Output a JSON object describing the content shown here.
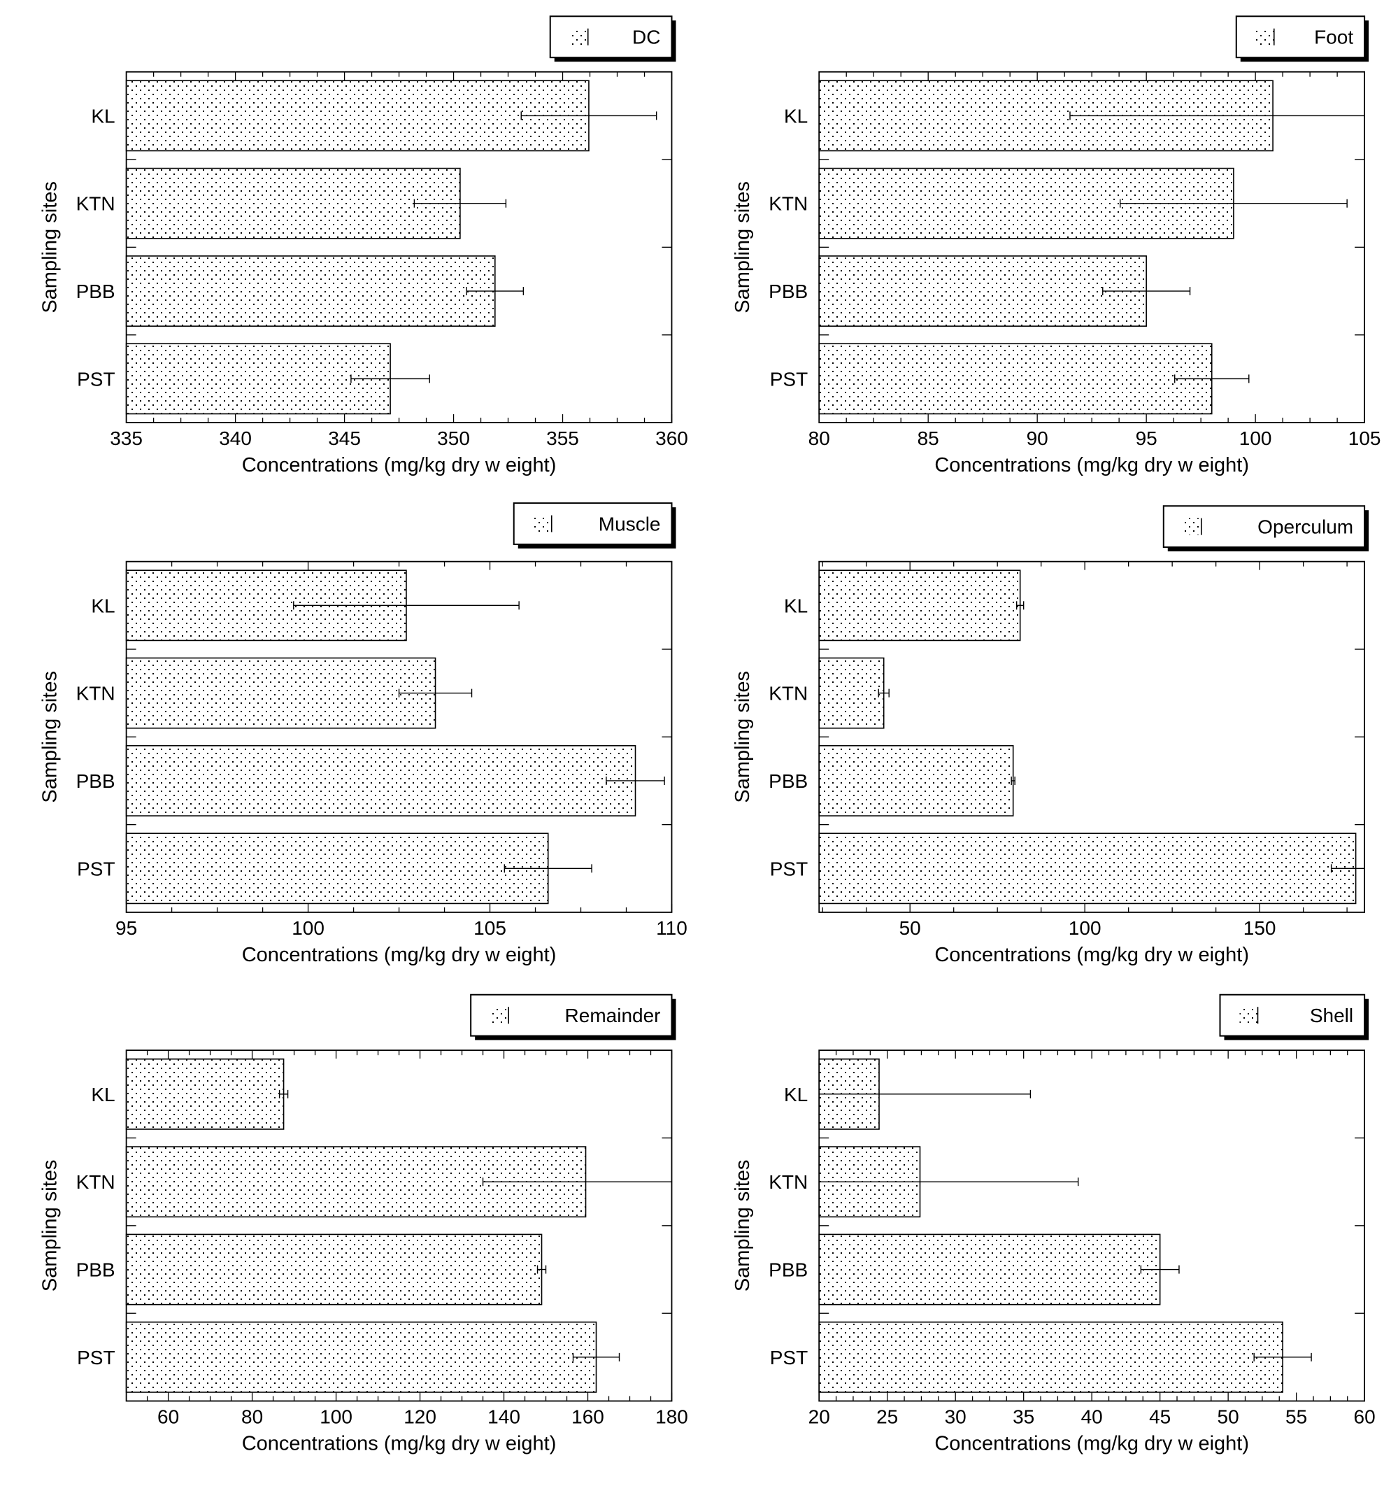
{
  "figure": {
    "panel_count": 6
  },
  "chart_data": [
    {
      "type": "bar",
      "orientation": "horizontal",
      "title": "",
      "legend_label": "DC",
      "legend_position": "top-right",
      "categories": [
        "KL",
        "KTN",
        "PBB",
        "PST"
      ],
      "values": [
        356.2,
        350.3,
        351.9,
        347.1
      ],
      "errors": [
        3.1,
        2.1,
        1.3,
        1.8
      ],
      "xlim": [
        335,
        360
      ],
      "xticks": [
        335,
        340,
        345,
        350,
        355,
        360
      ],
      "xlabel": "Concentrations (mg/kg dry w eight)",
      "ylabel": "Sampling sites",
      "grid": false,
      "fill_pattern": "dotted"
    },
    {
      "type": "bar",
      "orientation": "horizontal",
      "title": "",
      "legend_label": "Foot",
      "legend_position": "top-right",
      "categories": [
        "KL",
        "KTN",
        "PBB",
        "PST"
      ],
      "values": [
        100.8,
        99.0,
        95.0,
        98.0
      ],
      "errors": [
        9.3,
        5.2,
        2.0,
        1.7
      ],
      "xlim": [
        80,
        105
      ],
      "xticks": [
        80,
        85,
        90,
        95,
        100,
        105
      ],
      "xlabel": "Concentrations (mg/kg dry w eight)",
      "ylabel": "Sampling sites",
      "grid": false,
      "fill_pattern": "dotted"
    },
    {
      "type": "bar",
      "orientation": "horizontal",
      "title": "",
      "legend_label": "Muscle",
      "legend_position": "top-right",
      "categories": [
        "KL",
        "KTN",
        "PBB",
        "PST"
      ],
      "values": [
        102.7,
        103.5,
        109.0,
        106.6
      ],
      "errors": [
        3.1,
        1.0,
        0.8,
        1.2
      ],
      "xlim": [
        95,
        110
      ],
      "xticks": [
        95,
        100,
        105,
        110
      ],
      "xlabel": "Concentrations (mg/kg dry w eight)",
      "ylabel": "Sampling sites",
      "grid": false,
      "fill_pattern": "dotted"
    },
    {
      "type": "bar",
      "orientation": "horizontal",
      "title": "",
      "legend_label": "Operculum",
      "legend_position": "top-right",
      "categories": [
        "KL",
        "KTN",
        "PBB",
        "PST"
      ],
      "values": [
        81.5,
        42.5,
        79.5,
        177.5
      ],
      "errors": [
        1.0,
        1.5,
        0.5,
        7.0
      ],
      "xlim": [
        24,
        180
      ],
      "xticks": [
        50,
        100,
        150
      ],
      "xlabel": "Concentrations (mg/kg dry w eight)",
      "ylabel": "Sampling sites",
      "grid": false,
      "fill_pattern": "dotted"
    },
    {
      "type": "bar",
      "orientation": "horizontal",
      "title": "",
      "legend_label": "Remainder",
      "legend_position": "top-right",
      "categories": [
        "KL",
        "KTN",
        "PBB",
        "PST"
      ],
      "values": [
        87.5,
        159.5,
        149.0,
        162.0
      ],
      "errors": [
        1.0,
        24.5,
        1.0,
        5.5
      ],
      "xlim": [
        50,
        180
      ],
      "xticks": [
        60,
        80,
        100,
        120,
        140,
        160,
        180
      ],
      "xlabel": "Concentrations (mg/kg dry w eight)",
      "ylabel": "Sampling sites",
      "grid": false,
      "fill_pattern": "dotted"
    },
    {
      "type": "bar",
      "orientation": "horizontal",
      "title": "",
      "legend_label": "Shell",
      "legend_position": "top-right",
      "categories": [
        "KL",
        "KTN",
        "PBB",
        "PST"
      ],
      "values": [
        24.4,
        27.4,
        45.0,
        54.0
      ],
      "errors": [
        11.1,
        11.6,
        1.4,
        2.1
      ],
      "xlim": [
        20,
        60
      ],
      "xticks": [
        20,
        25,
        30,
        35,
        40,
        45,
        50,
        55,
        60
      ],
      "xlabel": "Concentrations (mg/kg dry w eight)",
      "ylabel": "Sampling sites",
      "grid": false,
      "fill_pattern": "dotted"
    }
  ]
}
